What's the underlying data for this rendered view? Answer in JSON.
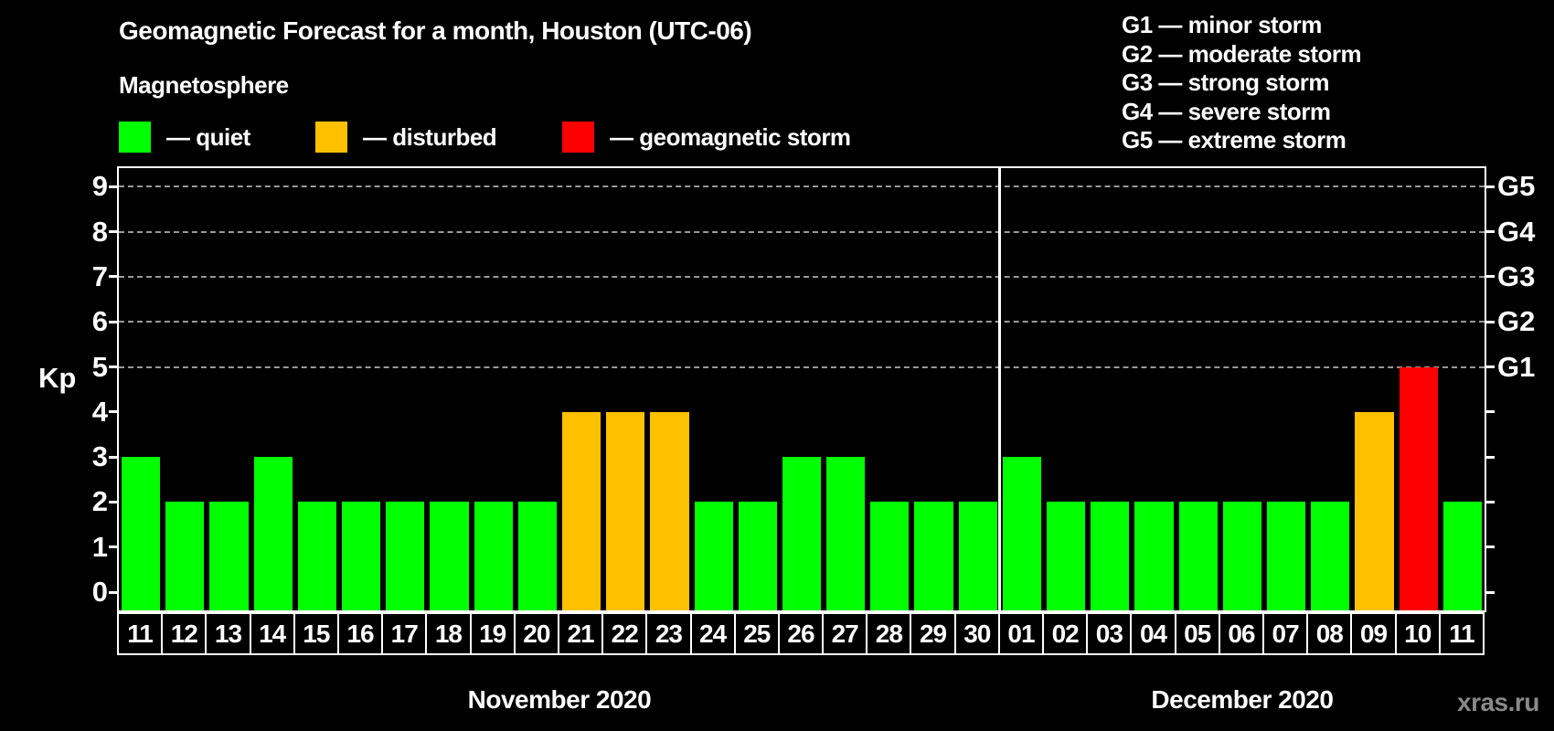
{
  "title": "Geomagnetic Forecast for a month, Houston (UTC-06)",
  "subtitle": "Magnetosphere",
  "legend": {
    "items": [
      {
        "name": "quiet",
        "label": "— quiet",
        "color": "#00ff00"
      },
      {
        "name": "disturbed",
        "label": "— disturbed",
        "color": "#ffc000"
      },
      {
        "name": "storm",
        "label": "— geomagnetic storm",
        "color": "#ff0000"
      }
    ]
  },
  "g_legend": [
    "G1 — minor storm",
    "G2 — moderate storm",
    "G3 — strong storm",
    "G4 — severe storm",
    "G5 — extreme storm"
  ],
  "watermark": "xras.ru",
  "chart_data": {
    "type": "bar",
    "ylabel": "Kp",
    "ylim": [
      0,
      9
    ],
    "y_ticks": [
      0,
      1,
      2,
      3,
      4,
      5,
      6,
      7,
      8,
      9
    ],
    "gridlines_at": [
      5,
      6,
      7,
      8,
      9
    ],
    "grid": "dashed horizontal at G-levels only",
    "legend_position": "top-left swatches, G-scale top-right",
    "right_axis": [
      {
        "value": 5,
        "label": "G1"
      },
      {
        "value": 6,
        "label": "G2"
      },
      {
        "value": 7,
        "label": "G3"
      },
      {
        "value": 8,
        "label": "G4"
      },
      {
        "value": 9,
        "label": "G5"
      }
    ],
    "colors": {
      "quiet": "#00ff00",
      "disturbed": "#ffc000",
      "storm": "#ff0000"
    },
    "months": [
      {
        "label": "November 2020",
        "days": 20
      },
      {
        "label": "December 2020",
        "days": 11
      }
    ],
    "bars": [
      {
        "day": "11",
        "kp": 3,
        "state": "quiet"
      },
      {
        "day": "12",
        "kp": 2,
        "state": "quiet"
      },
      {
        "day": "13",
        "kp": 2,
        "state": "quiet"
      },
      {
        "day": "14",
        "kp": 3,
        "state": "quiet"
      },
      {
        "day": "15",
        "kp": 2,
        "state": "quiet"
      },
      {
        "day": "16",
        "kp": 2,
        "state": "quiet"
      },
      {
        "day": "17",
        "kp": 2,
        "state": "quiet"
      },
      {
        "day": "18",
        "kp": 2,
        "state": "quiet"
      },
      {
        "day": "19",
        "kp": 2,
        "state": "quiet"
      },
      {
        "day": "20",
        "kp": 2,
        "state": "quiet"
      },
      {
        "day": "21",
        "kp": 4,
        "state": "disturbed"
      },
      {
        "day": "22",
        "kp": 4,
        "state": "disturbed"
      },
      {
        "day": "23",
        "kp": 4,
        "state": "disturbed"
      },
      {
        "day": "24",
        "kp": 2,
        "state": "quiet"
      },
      {
        "day": "25",
        "kp": 2,
        "state": "quiet"
      },
      {
        "day": "26",
        "kp": 3,
        "state": "quiet"
      },
      {
        "day": "27",
        "kp": 3,
        "state": "quiet"
      },
      {
        "day": "28",
        "kp": 2,
        "state": "quiet"
      },
      {
        "day": "29",
        "kp": 2,
        "state": "quiet"
      },
      {
        "day": "30",
        "kp": 2,
        "state": "quiet"
      },
      {
        "day": "01",
        "kp": 3,
        "state": "quiet"
      },
      {
        "day": "02",
        "kp": 2,
        "state": "quiet"
      },
      {
        "day": "03",
        "kp": 2,
        "state": "quiet"
      },
      {
        "day": "04",
        "kp": 2,
        "state": "quiet"
      },
      {
        "day": "05",
        "kp": 2,
        "state": "quiet"
      },
      {
        "day": "06",
        "kp": 2,
        "state": "quiet"
      },
      {
        "day": "07",
        "kp": 2,
        "state": "quiet"
      },
      {
        "day": "08",
        "kp": 2,
        "state": "quiet"
      },
      {
        "day": "09",
        "kp": 4,
        "state": "disturbed"
      },
      {
        "day": "10",
        "kp": 5,
        "state": "storm"
      },
      {
        "day": "11",
        "kp": 2,
        "state": "quiet"
      }
    ]
  }
}
